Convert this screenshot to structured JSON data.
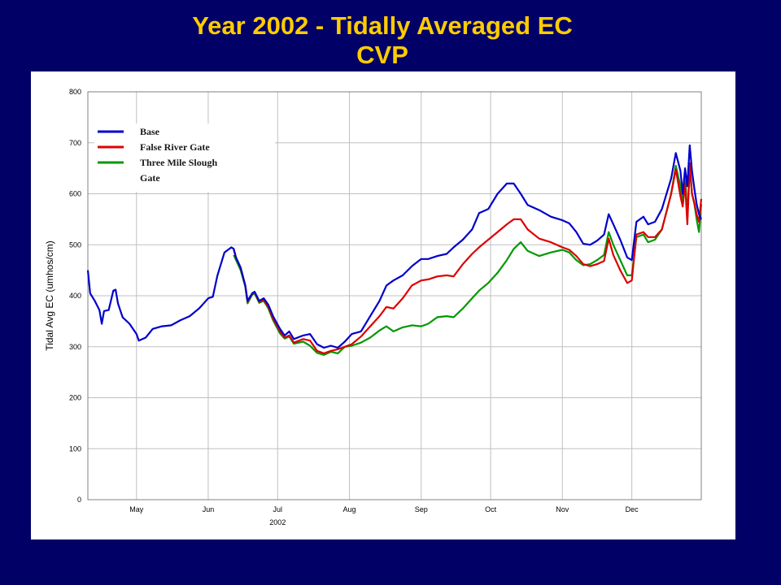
{
  "slide": {
    "title_line1": "Year 2002 - Tidally Averaged EC",
    "title_line2": "CVP"
  },
  "colors": {
    "background": "#000066",
    "title": "#ffcc00",
    "base": "#0000cc",
    "false_river_gate": "#dd0000",
    "three_mile_slough_gate": "#009900",
    "grid": "#c0c0c0"
  },
  "chart_data": {
    "type": "line",
    "title": "",
    "xlabel": "2002",
    "ylabel": "Tidal Avg EC (umhos/cm)",
    "ylim": [
      0,
      800
    ],
    "yticks": [
      0,
      100,
      200,
      300,
      400,
      500,
      600,
      700,
      800
    ],
    "xlim": [
      "2002-04-10",
      "2002-12-31"
    ],
    "xticks": [
      {
        "label": "May",
        "date": "2002-05-01"
      },
      {
        "label": "Jun",
        "date": "2002-06-01"
      },
      {
        "label": "Jul",
        "date": "2002-07-01"
      },
      {
        "label": "Aug",
        "date": "2002-08-01"
      },
      {
        "label": "Sep",
        "date": "2002-09-01"
      },
      {
        "label": "Oct",
        "date": "2002-10-01"
      },
      {
        "label": "Nov",
        "date": "2002-11-01"
      },
      {
        "label": "Dec",
        "date": "2002-12-01"
      }
    ],
    "grid": true,
    "legend_position": "top-left",
    "legend_entries": [
      "Base",
      "False River Gate",
      "Three Mile Slough Gate"
    ],
    "series": [
      {
        "name": "Base",
        "color": "#0000cc",
        "points": [
          [
            "2002-04-10",
            450
          ],
          [
            "2002-04-11",
            405
          ],
          [
            "2002-04-13",
            390
          ],
          [
            "2002-04-15",
            372
          ],
          [
            "2002-04-16",
            345
          ],
          [
            "2002-04-17",
            370
          ],
          [
            "2002-04-19",
            372
          ],
          [
            "2002-04-21",
            410
          ],
          [
            "2002-04-22",
            412
          ],
          [
            "2002-04-23",
            385
          ],
          [
            "2002-04-25",
            358
          ],
          [
            "2002-04-28",
            345
          ],
          [
            "2002-05-01",
            325
          ],
          [
            "2002-05-02",
            312
          ],
          [
            "2002-05-05",
            318
          ],
          [
            "2002-05-08",
            335
          ],
          [
            "2002-05-12",
            340
          ],
          [
            "2002-05-16",
            342
          ],
          [
            "2002-05-20",
            352
          ],
          [
            "2002-05-24",
            360
          ],
          [
            "2002-05-28",
            375
          ],
          [
            "2002-06-01",
            395
          ],
          [
            "2002-06-03",
            398
          ],
          [
            "2002-06-05",
            440
          ],
          [
            "2002-06-08",
            485
          ],
          [
            "2002-06-11",
            495
          ],
          [
            "2002-06-12",
            492
          ],
          [
            "2002-06-13",
            475
          ],
          [
            "2002-06-15",
            455
          ],
          [
            "2002-06-17",
            420
          ],
          [
            "2002-06-18",
            390
          ],
          [
            "2002-06-20",
            405
          ],
          [
            "2002-06-21",
            408
          ],
          [
            "2002-06-23",
            390
          ],
          [
            "2002-06-25",
            395
          ],
          [
            "2002-06-27",
            382
          ],
          [
            "2002-06-29",
            360
          ],
          [
            "2002-07-02",
            335
          ],
          [
            "2002-07-04",
            322
          ],
          [
            "2002-07-06",
            330
          ],
          [
            "2002-07-08",
            315
          ],
          [
            "2002-07-12",
            322
          ],
          [
            "2002-07-15",
            325
          ],
          [
            "2002-07-18",
            305
          ],
          [
            "2002-07-21",
            298
          ],
          [
            "2002-07-24",
            302
          ],
          [
            "2002-07-27",
            298
          ],
          [
            "2002-07-30",
            310
          ],
          [
            "2002-08-02",
            325
          ],
          [
            "2002-08-06",
            330
          ],
          [
            "2002-08-10",
            360
          ],
          [
            "2002-08-14",
            390
          ],
          [
            "2002-08-17",
            420
          ],
          [
            "2002-08-20",
            430
          ],
          [
            "2002-08-24",
            440
          ],
          [
            "2002-08-28",
            458
          ],
          [
            "2002-09-01",
            472
          ],
          [
            "2002-09-04",
            472
          ],
          [
            "2002-09-08",
            478
          ],
          [
            "2002-09-12",
            482
          ],
          [
            "2002-09-15",
            495
          ],
          [
            "2002-09-19",
            510
          ],
          [
            "2002-09-23",
            530
          ],
          [
            "2002-09-26",
            562
          ],
          [
            "2002-09-30",
            570
          ],
          [
            "2002-10-04",
            600
          ],
          [
            "2002-10-08",
            620
          ],
          [
            "2002-10-11",
            620
          ],
          [
            "2002-10-14",
            600
          ],
          [
            "2002-10-17",
            578
          ],
          [
            "2002-10-22",
            568
          ],
          [
            "2002-10-27",
            555
          ],
          [
            "2002-11-01",
            548
          ],
          [
            "2002-11-04",
            542
          ],
          [
            "2002-11-07",
            525
          ],
          [
            "2002-11-10",
            502
          ],
          [
            "2002-11-13",
            500
          ],
          [
            "2002-11-16",
            508
          ],
          [
            "2002-11-19",
            520
          ],
          [
            "2002-11-21",
            560
          ],
          [
            "2002-11-23",
            540
          ],
          [
            "2002-11-26",
            510
          ],
          [
            "2002-11-29",
            475
          ],
          [
            "2002-12-01",
            470
          ],
          [
            "2002-12-03",
            545
          ],
          [
            "2002-12-06",
            555
          ],
          [
            "2002-12-08",
            540
          ],
          [
            "2002-12-11",
            545
          ],
          [
            "2002-12-14",
            570
          ],
          [
            "2002-12-18",
            630
          ],
          [
            "2002-12-20",
            680
          ],
          [
            "2002-12-22",
            645
          ],
          [
            "2002-12-23",
            600
          ],
          [
            "2002-12-24",
            650
          ],
          [
            "2002-12-25",
            615
          ],
          [
            "2002-12-26",
            695
          ],
          [
            "2002-12-27",
            645
          ],
          [
            "2002-12-28",
            610
          ],
          [
            "2002-12-29",
            580
          ],
          [
            "2002-12-30",
            560
          ],
          [
            "2002-12-31",
            550
          ]
        ]
      },
      {
        "name": "False River Gate",
        "color": "#dd0000",
        "points": [
          [
            "2002-06-12",
            490
          ],
          [
            "2002-06-13",
            475
          ],
          [
            "2002-06-15",
            455
          ],
          [
            "2002-06-17",
            420
          ],
          [
            "2002-06-18",
            388
          ],
          [
            "2002-06-20",
            404
          ],
          [
            "2002-06-21",
            407
          ],
          [
            "2002-06-23",
            388
          ],
          [
            "2002-06-25",
            392
          ],
          [
            "2002-06-27",
            378
          ],
          [
            "2002-06-29",
            355
          ],
          [
            "2002-07-02",
            330
          ],
          [
            "2002-07-04",
            318
          ],
          [
            "2002-07-06",
            322
          ],
          [
            "2002-07-08",
            308
          ],
          [
            "2002-07-12",
            315
          ],
          [
            "2002-07-15",
            312
          ],
          [
            "2002-07-18",
            292
          ],
          [
            "2002-07-21",
            287
          ],
          [
            "2002-07-24",
            292
          ],
          [
            "2002-07-27",
            295
          ],
          [
            "2002-07-30",
            300
          ],
          [
            "2002-08-02",
            305
          ],
          [
            "2002-08-06",
            320
          ],
          [
            "2002-08-10",
            340
          ],
          [
            "2002-08-14",
            360
          ],
          [
            "2002-08-17",
            378
          ],
          [
            "2002-08-20",
            375
          ],
          [
            "2002-08-24",
            395
          ],
          [
            "2002-08-28",
            420
          ],
          [
            "2002-09-01",
            430
          ],
          [
            "2002-09-04",
            432
          ],
          [
            "2002-09-08",
            438
          ],
          [
            "2002-09-12",
            440
          ],
          [
            "2002-09-15",
            438
          ],
          [
            "2002-09-19",
            462
          ],
          [
            "2002-09-23",
            482
          ],
          [
            "2002-09-26",
            495
          ],
          [
            "2002-09-30",
            510
          ],
          [
            "2002-10-04",
            525
          ],
          [
            "2002-10-08",
            540
          ],
          [
            "2002-10-11",
            550
          ],
          [
            "2002-10-14",
            550
          ],
          [
            "2002-10-17",
            530
          ],
          [
            "2002-10-22",
            512
          ],
          [
            "2002-10-27",
            505
          ],
          [
            "2002-11-01",
            495
          ],
          [
            "2002-11-04",
            490
          ],
          [
            "2002-11-07",
            478
          ],
          [
            "2002-11-10",
            462
          ],
          [
            "2002-11-13",
            458
          ],
          [
            "2002-11-16",
            462
          ],
          [
            "2002-11-19",
            468
          ],
          [
            "2002-11-21",
            512
          ],
          [
            "2002-11-23",
            480
          ],
          [
            "2002-11-26",
            450
          ],
          [
            "2002-11-29",
            425
          ],
          [
            "2002-12-01",
            430
          ],
          [
            "2002-12-03",
            520
          ],
          [
            "2002-12-06",
            525
          ],
          [
            "2002-12-08",
            515
          ],
          [
            "2002-12-11",
            515
          ],
          [
            "2002-12-14",
            530
          ],
          [
            "2002-12-18",
            600
          ],
          [
            "2002-12-20",
            648
          ],
          [
            "2002-12-22",
            595
          ],
          [
            "2002-12-23",
            575
          ],
          [
            "2002-12-24",
            620
          ],
          [
            "2002-12-25",
            540
          ],
          [
            "2002-12-26",
            660
          ],
          [
            "2002-12-27",
            600
          ],
          [
            "2002-12-28",
            582
          ],
          [
            "2002-12-29",
            560
          ],
          [
            "2002-12-30",
            545
          ],
          [
            "2002-12-31",
            590
          ]
        ]
      },
      {
        "name": "Three Mile Slough Gate",
        "color": "#009900",
        "points": [
          [
            "2002-06-12",
            480
          ],
          [
            "2002-06-13",
            470
          ],
          [
            "2002-06-15",
            450
          ],
          [
            "2002-06-17",
            418
          ],
          [
            "2002-06-18",
            385
          ],
          [
            "2002-06-20",
            402
          ],
          [
            "2002-06-21",
            405
          ],
          [
            "2002-06-23",
            386
          ],
          [
            "2002-06-25",
            390
          ],
          [
            "2002-06-27",
            375
          ],
          [
            "2002-06-29",
            352
          ],
          [
            "2002-07-02",
            326
          ],
          [
            "2002-07-04",
            316
          ],
          [
            "2002-07-06",
            320
          ],
          [
            "2002-07-08",
            306
          ],
          [
            "2002-07-12",
            310
          ],
          [
            "2002-07-15",
            302
          ],
          [
            "2002-07-18",
            288
          ],
          [
            "2002-07-21",
            284
          ],
          [
            "2002-07-24",
            290
          ],
          [
            "2002-07-27",
            287
          ],
          [
            "2002-07-30",
            300
          ],
          [
            "2002-08-02",
            302
          ],
          [
            "2002-08-06",
            308
          ],
          [
            "2002-08-10",
            318
          ],
          [
            "2002-08-14",
            332
          ],
          [
            "2002-08-17",
            340
          ],
          [
            "2002-08-20",
            330
          ],
          [
            "2002-08-24",
            338
          ],
          [
            "2002-08-28",
            342
          ],
          [
            "2002-09-01",
            340
          ],
          [
            "2002-09-04",
            345
          ],
          [
            "2002-09-08",
            358
          ],
          [
            "2002-09-12",
            360
          ],
          [
            "2002-09-15",
            358
          ],
          [
            "2002-09-19",
            375
          ],
          [
            "2002-09-23",
            395
          ],
          [
            "2002-09-26",
            410
          ],
          [
            "2002-09-30",
            425
          ],
          [
            "2002-10-04",
            445
          ],
          [
            "2002-10-08",
            470
          ],
          [
            "2002-10-11",
            492
          ],
          [
            "2002-10-14",
            505
          ],
          [
            "2002-10-17",
            488
          ],
          [
            "2002-10-22",
            478
          ],
          [
            "2002-10-27",
            485
          ],
          [
            "2002-11-01",
            490
          ],
          [
            "2002-11-04",
            485
          ],
          [
            "2002-11-07",
            470
          ],
          [
            "2002-11-10",
            460
          ],
          [
            "2002-11-13",
            462
          ],
          [
            "2002-11-16",
            470
          ],
          [
            "2002-11-19",
            480
          ],
          [
            "2002-11-21",
            525
          ],
          [
            "2002-11-23",
            500
          ],
          [
            "2002-11-26",
            470
          ],
          [
            "2002-11-29",
            440
          ],
          [
            "2002-12-01",
            440
          ],
          [
            "2002-12-03",
            515
          ],
          [
            "2002-12-06",
            520
          ],
          [
            "2002-12-08",
            505
          ],
          [
            "2002-12-11",
            510
          ],
          [
            "2002-12-14",
            530
          ],
          [
            "2002-12-18",
            600
          ],
          [
            "2002-12-20",
            655
          ],
          [
            "2002-12-22",
            615
          ],
          [
            "2002-12-23",
            580
          ],
          [
            "2002-12-24",
            640
          ],
          [
            "2002-12-25",
            555
          ],
          [
            "2002-12-26",
            650
          ],
          [
            "2002-12-27",
            600
          ],
          [
            "2002-12-28",
            580
          ],
          [
            "2002-12-29",
            550
          ],
          [
            "2002-12-30",
            525
          ],
          [
            "2002-12-31",
            580
          ]
        ]
      }
    ]
  }
}
